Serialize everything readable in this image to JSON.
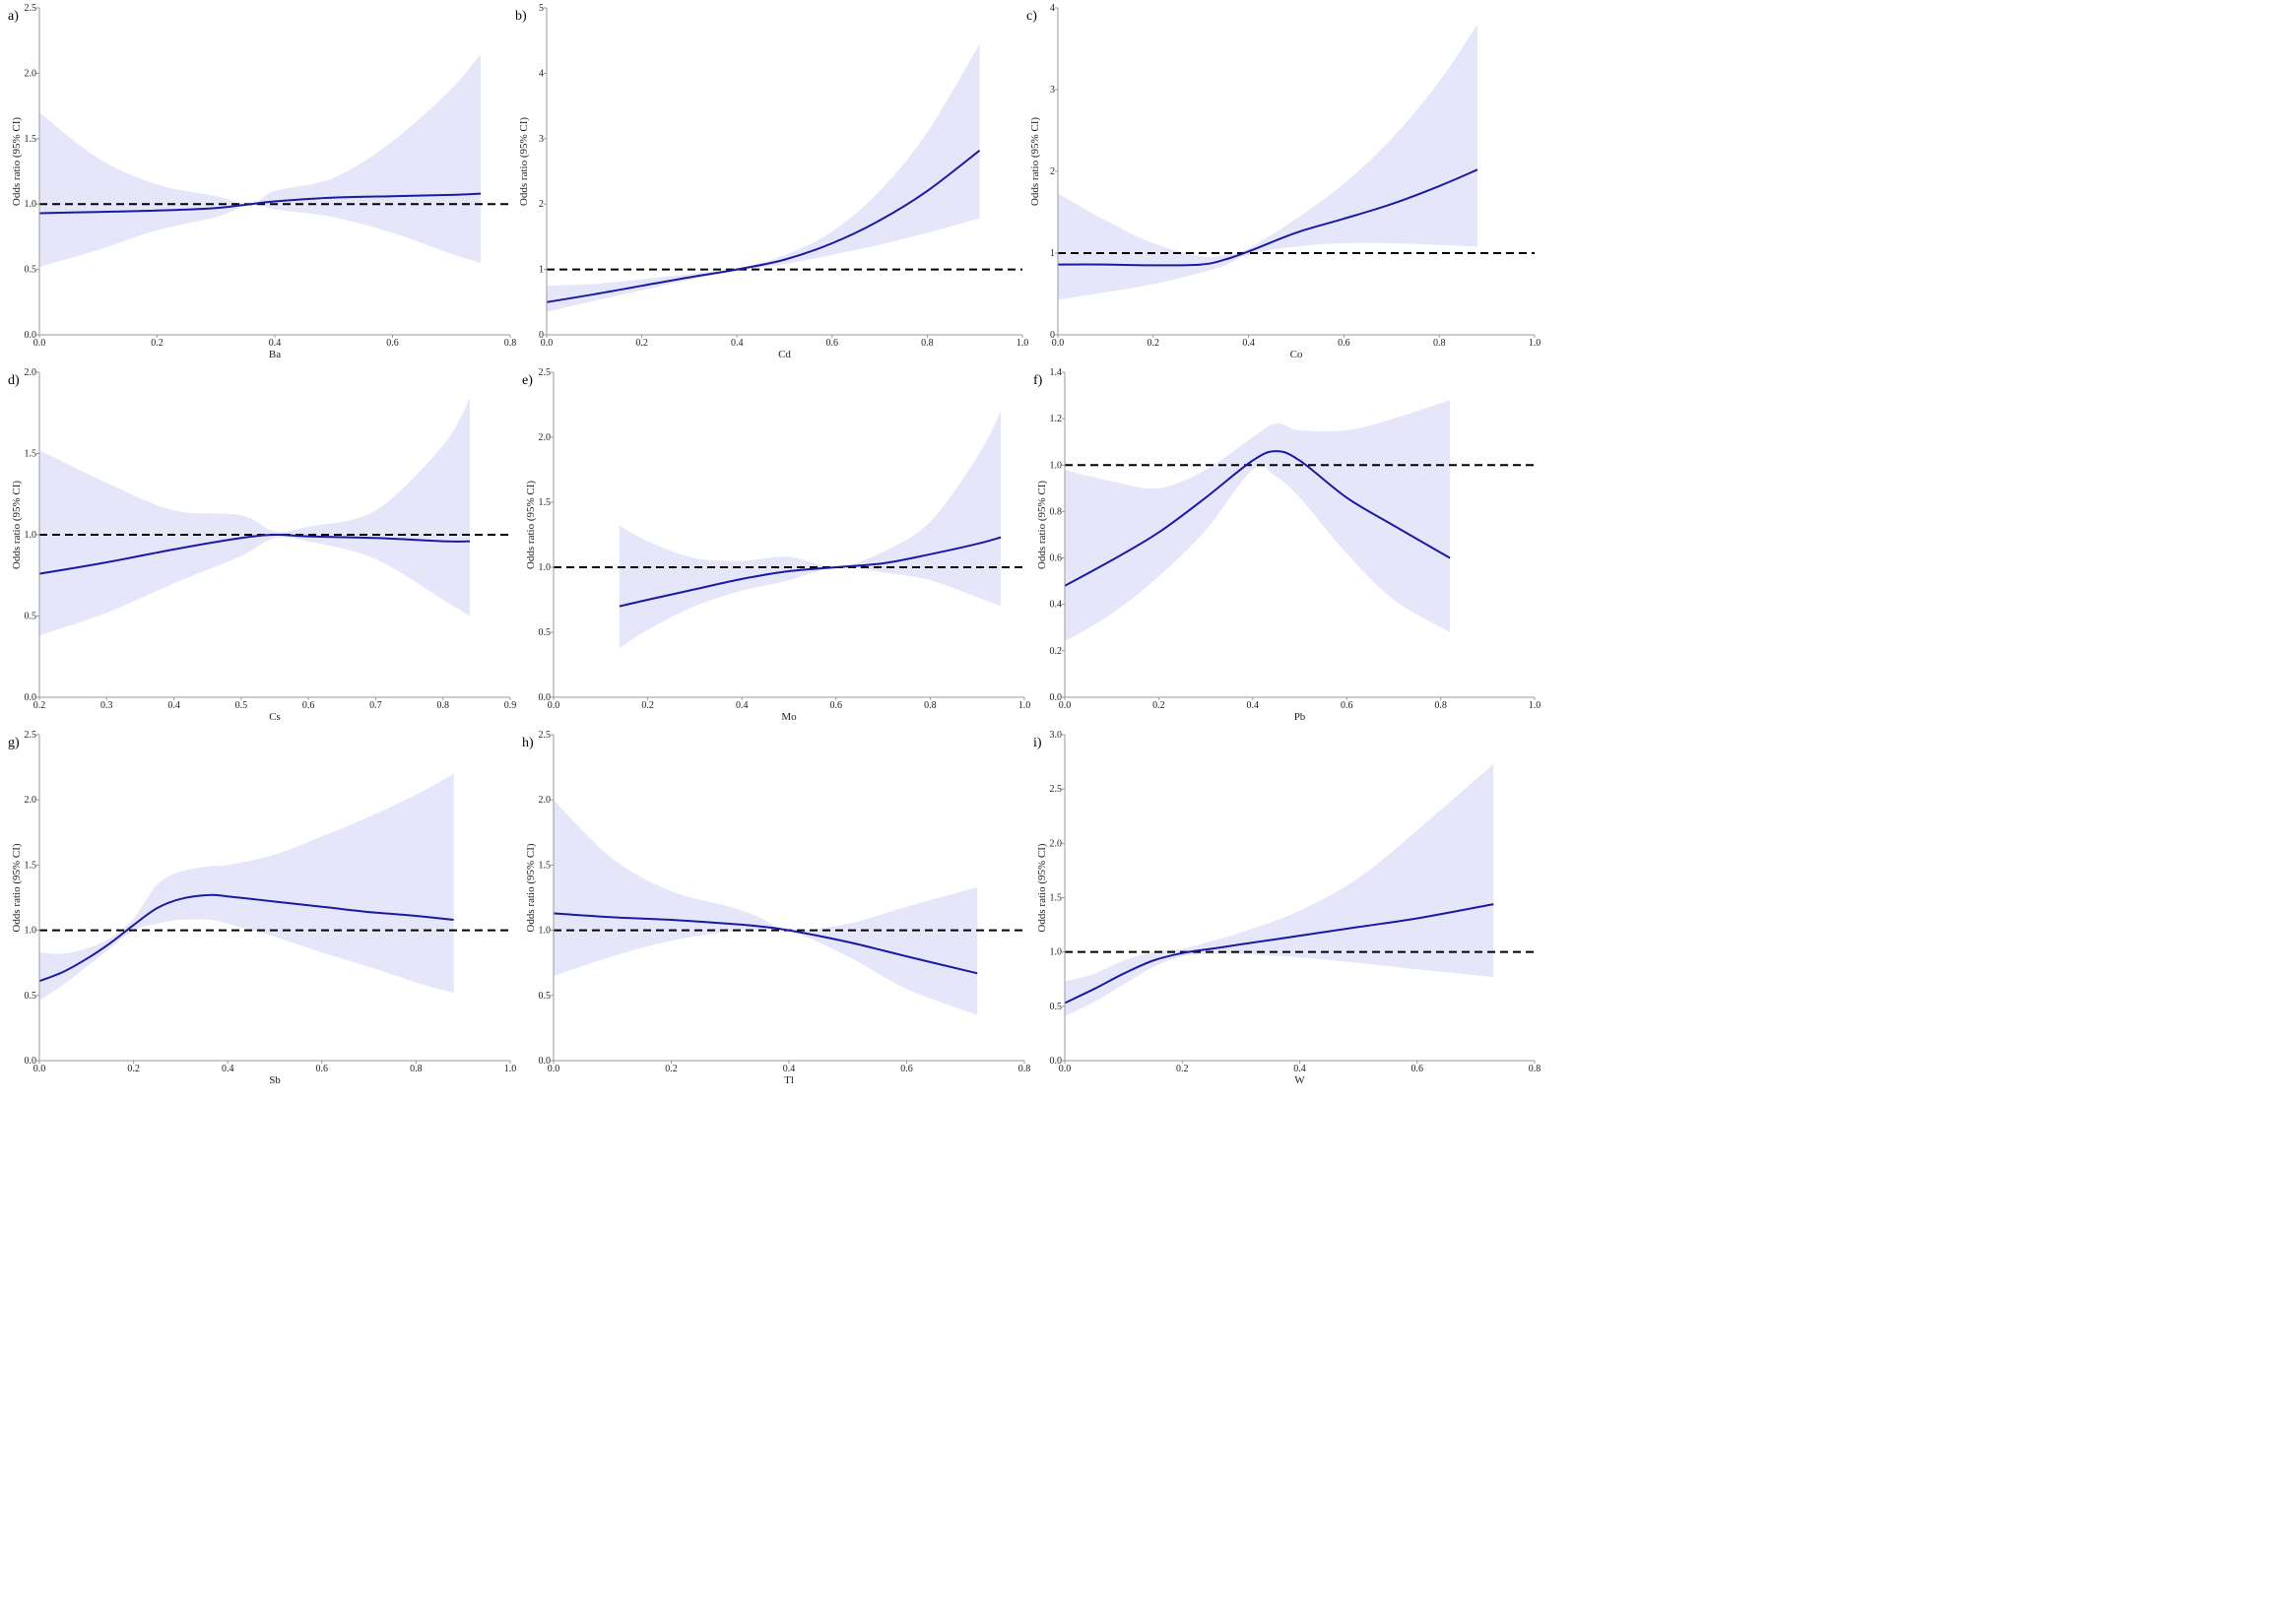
{
  "colors": {
    "band": "#e6e6fa",
    "curve": "#1a1aa0",
    "reference": "#000000",
    "axis": "#999999"
  },
  "chart_data": [
    {
      "type": "line",
      "panel": "a)",
      "xlabel": "Ba",
      "ylabel": "Odds ratio (95% CI)",
      "xlim": [
        0,
        0.8
      ],
      "ylim": [
        0,
        2.5
      ],
      "xticks": [
        0,
        0.2,
        0.4,
        0.6,
        0.8
      ],
      "yticks": [
        0,
        0.5,
        1,
        1.5,
        2,
        2.5
      ],
      "x_tick_labels": [
        "0.0",
        "0.2",
        "0.4",
        "0.6",
        "0.8"
      ],
      "y_tick_labels": [
        "0.0",
        "0.5",
        "1.0",
        "1.5",
        "2.0",
        "2.5"
      ],
      "reference": 1.0,
      "x": [
        0,
        0.1,
        0.2,
        0.3,
        0.36,
        0.4,
        0.5,
        0.6,
        0.7,
        0.75
      ],
      "or": [
        0.93,
        0.94,
        0.95,
        0.97,
        1.0,
        1.02,
        1.05,
        1.06,
        1.07,
        1.08
      ],
      "lower": [
        0.52,
        0.65,
        0.8,
        0.9,
        1.0,
        0.96,
        0.9,
        0.78,
        0.62,
        0.55
      ],
      "upper": [
        1.7,
        1.35,
        1.15,
        1.06,
        1.0,
        1.1,
        1.2,
        1.48,
        1.88,
        2.15
      ]
    },
    {
      "type": "line",
      "panel": "b)",
      "xlabel": "Cd",
      "ylabel": "Odds ratio (95% CI)",
      "xlim": [
        0,
        1.0
      ],
      "ylim": [
        0,
        5
      ],
      "xticks": [
        0,
        0.2,
        0.4,
        0.6,
        0.8,
        1.0
      ],
      "yticks": [
        0,
        1,
        2,
        3,
        4,
        5
      ],
      "x_tick_labels": [
        "0.0",
        "0.2",
        "0.4",
        "0.6",
        "0.8",
        "1.0"
      ],
      "y_tick_labels": [
        "0",
        "1",
        "2",
        "3",
        "4",
        "5"
      ],
      "reference": 1.0,
      "x": [
        0,
        0.1,
        0.2,
        0.3,
        0.4,
        0.5,
        0.6,
        0.7,
        0.8,
        0.91
      ],
      "or": [
        0.5,
        0.62,
        0.75,
        0.88,
        1.0,
        1.15,
        1.4,
        1.75,
        2.2,
        2.82
      ],
      "lower": [
        0.35,
        0.52,
        0.68,
        0.84,
        0.98,
        1.08,
        1.22,
        1.38,
        1.56,
        1.78
      ],
      "upper": [
        0.75,
        0.78,
        0.85,
        0.93,
        1.02,
        1.22,
        1.58,
        2.2,
        3.1,
        4.45
      ]
    },
    {
      "type": "line",
      "panel": "c)",
      "xlabel": "Co",
      "ylabel": "Odds ratio (95% CI)",
      "xlim": [
        0,
        1.0
      ],
      "ylim": [
        0,
        4
      ],
      "xticks": [
        0,
        0.2,
        0.4,
        0.6,
        0.8,
        1.0
      ],
      "yticks": [
        0,
        1,
        2,
        3,
        4
      ],
      "x_tick_labels": [
        "0.0",
        "0.2",
        "0.4",
        "0.6",
        "0.8",
        "1.0"
      ],
      "y_tick_labels": [
        "0",
        "1",
        "2",
        "3",
        "4"
      ],
      "reference": 1.0,
      "x": [
        0,
        0.1,
        0.2,
        0.3,
        0.35,
        0.4,
        0.5,
        0.6,
        0.7,
        0.8,
        0.88
      ],
      "or": [
        0.86,
        0.86,
        0.85,
        0.86,
        0.92,
        1.02,
        1.25,
        1.42,
        1.6,
        1.82,
        2.02
      ],
      "lower": [
        0.43,
        0.52,
        0.62,
        0.76,
        0.85,
        0.98,
        1.08,
        1.12,
        1.12,
        1.1,
        1.08
      ],
      "upper": [
        1.73,
        1.4,
        1.12,
        0.96,
        0.98,
        1.06,
        1.42,
        1.85,
        2.4,
        3.1,
        3.8
      ]
    },
    {
      "type": "line",
      "panel": "d)",
      "xlabel": "Cs",
      "ylabel": "Odds ratio (95% CI)",
      "xlim": [
        0.2,
        0.9
      ],
      "ylim": [
        0,
        2.0
      ],
      "xticks": [
        0.2,
        0.3,
        0.4,
        0.5,
        0.6,
        0.7,
        0.8,
        0.9
      ],
      "yticks": [
        0,
        0.5,
        1.0,
        1.5,
        2.0
      ],
      "x_tick_labels": [
        "0.2",
        "0.3",
        "0.4",
        "0.5",
        "0.6",
        "0.7",
        "0.8",
        "0.9"
      ],
      "y_tick_labels": [
        "0.0",
        "0.5",
        "1.0",
        "1.5",
        "2.0"
      ],
      "reference": 1.0,
      "x": [
        0.2,
        0.3,
        0.4,
        0.5,
        0.55,
        0.6,
        0.7,
        0.8,
        0.84
      ],
      "or": [
        0.76,
        0.83,
        0.91,
        0.98,
        1.0,
        0.99,
        0.98,
        0.96,
        0.96
      ],
      "lower": [
        0.38,
        0.52,
        0.7,
        0.87,
        0.98,
        0.96,
        0.85,
        0.6,
        0.5
      ],
      "upper": [
        1.52,
        1.32,
        1.15,
        1.12,
        1.02,
        1.05,
        1.15,
        1.55,
        1.84
      ]
    },
    {
      "type": "line",
      "panel": "e)",
      "xlabel": "Mo",
      "ylabel": "Odds ratio (95% CI)",
      "xlim": [
        0,
        1.0
      ],
      "ylim": [
        0,
        2.5
      ],
      "xticks": [
        0,
        0.2,
        0.4,
        0.6,
        0.8,
        1.0
      ],
      "yticks": [
        0,
        0.5,
        1,
        1.5,
        2,
        2.5
      ],
      "x_tick_labels": [
        "0.0",
        "0.2",
        "0.4",
        "0.6",
        "0.8",
        "1.0"
      ],
      "y_tick_labels": [
        "0.0",
        "0.5",
        "1.0",
        "1.5",
        "2.0",
        "2.5"
      ],
      "reference": 1.0,
      "x": [
        0.14,
        0.2,
        0.3,
        0.4,
        0.5,
        0.6,
        0.7,
        0.8,
        0.9,
        0.95
      ],
      "or": [
        0.7,
        0.75,
        0.83,
        0.91,
        0.97,
        1.0,
        1.03,
        1.1,
        1.18,
        1.23
      ],
      "lower": [
        0.38,
        0.52,
        0.7,
        0.82,
        0.9,
        1.0,
        0.96,
        0.9,
        0.77,
        0.7
      ],
      "upper": [
        1.32,
        1.2,
        1.07,
        1.05,
        1.08,
        1.0,
        1.12,
        1.35,
        1.85,
        2.2
      ]
    },
    {
      "type": "line",
      "panel": "f)",
      "xlabel": "Pb",
      "ylabel": "Odds ratio (95% CI)",
      "xlim": [
        0,
        1.0
      ],
      "ylim": [
        0,
        1.4
      ],
      "xticks": [
        0,
        0.2,
        0.4,
        0.6,
        0.8,
        1.0
      ],
      "yticks": [
        0,
        0.2,
        0.4,
        0.6,
        0.8,
        1.0,
        1.2,
        1.4
      ],
      "x_tick_labels": [
        "0.0",
        "0.2",
        "0.4",
        "0.6",
        "0.8",
        "1.0"
      ],
      "y_tick_labels": [
        "0.0",
        "0.2",
        "0.4",
        "0.6",
        "0.8",
        "1.0",
        "1.2",
        "1.4"
      ],
      "reference": 1.0,
      "x": [
        0,
        0.1,
        0.2,
        0.3,
        0.4,
        0.45,
        0.5,
        0.6,
        0.7,
        0.82
      ],
      "or": [
        0.48,
        0.59,
        0.71,
        0.86,
        1.02,
        1.06,
        1.02,
        0.86,
        0.74,
        0.6
      ],
      "lower": [
        0.24,
        0.36,
        0.52,
        0.72,
        0.98,
        0.95,
        0.86,
        0.62,
        0.42,
        0.28
      ],
      "upper": [
        0.98,
        0.93,
        0.9,
        0.98,
        1.12,
        1.18,
        1.15,
        1.15,
        1.2,
        1.28
      ]
    },
    {
      "type": "line",
      "panel": "g)",
      "xlabel": "Sb",
      "ylabel": "Odds ratio (95% CI)",
      "xlim": [
        0,
        1.0
      ],
      "ylim": [
        0,
        2.5
      ],
      "xticks": [
        0,
        0.2,
        0.4,
        0.6,
        0.8,
        1.0
      ],
      "yticks": [
        0,
        0.5,
        1,
        1.5,
        2,
        2.5
      ],
      "x_tick_labels": [
        "0.0",
        "0.2",
        "0.4",
        "0.6",
        "0.8",
        "1.0"
      ],
      "y_tick_labels": [
        "0.0",
        "0.5",
        "1.0",
        "1.5",
        "2.0",
        "2.5"
      ],
      "reference": 1.0,
      "x": [
        0,
        0.05,
        0.1,
        0.15,
        0.2,
        0.25,
        0.3,
        0.36,
        0.4,
        0.5,
        0.6,
        0.7,
        0.8,
        0.88
      ],
      "or": [
        0.61,
        0.68,
        0.78,
        0.9,
        1.04,
        1.17,
        1.24,
        1.27,
        1.26,
        1.22,
        1.18,
        1.14,
        1.11,
        1.08
      ],
      "lower": [
        0.46,
        0.58,
        0.72,
        0.86,
        1.0,
        1.05,
        1.08,
        1.08,
        1.05,
        0.95,
        0.83,
        0.72,
        0.6,
        0.52
      ],
      "upper": [
        0.83,
        0.82,
        0.86,
        0.94,
        1.09,
        1.35,
        1.45,
        1.49,
        1.5,
        1.58,
        1.72,
        1.87,
        2.04,
        2.2
      ]
    },
    {
      "type": "line",
      "panel": "h)",
      "xlabel": "Tl",
      "ylabel": "Odds ratio (95% CI)",
      "xlim": [
        0,
        0.8
      ],
      "ylim": [
        0,
        2.5
      ],
      "xticks": [
        0,
        0.2,
        0.4,
        0.6,
        0.8
      ],
      "yticks": [
        0,
        0.5,
        1,
        1.5,
        2,
        2.5
      ],
      "x_tick_labels": [
        "0.0",
        "0.2",
        "0.4",
        "0.6",
        "0.8"
      ],
      "y_tick_labels": [
        "0.0",
        "0.5",
        "1.0",
        "1.5",
        "2.0",
        "2.5"
      ],
      "reference": 1.0,
      "x": [
        0,
        0.1,
        0.2,
        0.3,
        0.35,
        0.4,
        0.5,
        0.6,
        0.72
      ],
      "or": [
        1.13,
        1.1,
        1.08,
        1.05,
        1.03,
        1.0,
        0.91,
        0.8,
        0.67
      ],
      "lower": [
        0.65,
        0.8,
        0.92,
        0.99,
        1.0,
        1.0,
        0.8,
        0.55,
        0.35
      ],
      "upper": [
        2.0,
        1.55,
        1.3,
        1.18,
        1.1,
        1.0,
        1.05,
        1.18,
        1.33
      ]
    },
    {
      "type": "line",
      "panel": "i)",
      "xlabel": "W",
      "ylabel": "Odds ratio (95% CI)",
      "xlim": [
        0,
        0.8
      ],
      "ylim": [
        0,
        3.0
      ],
      "xticks": [
        0,
        0.2,
        0.4,
        0.6,
        0.8
      ],
      "yticks": [
        0,
        0.5,
        1.0,
        1.5,
        2.0,
        2.5,
        3.0
      ],
      "x_tick_labels": [
        "0.0",
        "0.2",
        "0.4",
        "0.6",
        "0.8"
      ],
      "y_tick_labels": [
        "0.0",
        "0.5",
        "1.0",
        "1.5",
        "2.0",
        "2.5",
        "3.0"
      ],
      "reference": 1.0,
      "x": [
        0,
        0.05,
        0.1,
        0.15,
        0.2,
        0.25,
        0.3,
        0.4,
        0.5,
        0.6,
        0.73
      ],
      "or": [
        0.53,
        0.66,
        0.8,
        0.92,
        0.99,
        1.03,
        1.07,
        1.15,
        1.23,
        1.31,
        1.44
      ],
      "lower": [
        0.41,
        0.54,
        0.7,
        0.86,
        0.96,
        0.98,
        0.98,
        0.95,
        0.9,
        0.84,
        0.77
      ],
      "upper": [
        0.73,
        0.8,
        0.92,
        1.0,
        1.03,
        1.1,
        1.18,
        1.38,
        1.68,
        2.12,
        2.73
      ]
    }
  ]
}
